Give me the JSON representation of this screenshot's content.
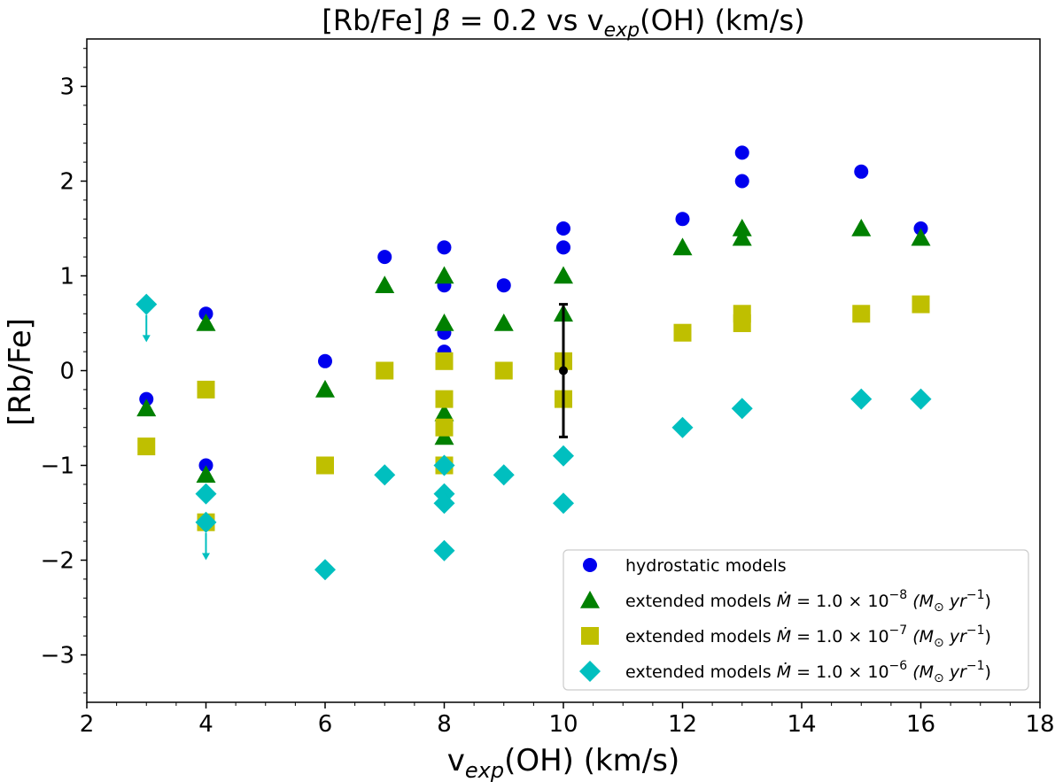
{
  "chart_data": {
    "type": "scatter",
    "title": "[Rb/Fe] β = 0.2 vs v_exp(OH) (km/s)",
    "title_parts": {
      "prefix": "[Rb/Fe] ",
      "beta": "β",
      "middle": " = 0.2 vs v",
      "sub": "exp",
      "suffix": "(OH) (km/s)"
    },
    "xlabel": "v_exp(OH) (km/s)",
    "xlabel_parts": {
      "prefix": "v",
      "sub": "exp",
      "suffix": "(OH) (km/s)"
    },
    "ylabel": "[Rb/Fe]",
    "xlim": [
      2,
      18
    ],
    "ylim": [
      -3.5,
      3.5
    ],
    "xticks": [
      2,
      4,
      6,
      8,
      10,
      12,
      14,
      16,
      18
    ],
    "yticks": [
      -3,
      -2,
      -1,
      0,
      1,
      2,
      3
    ],
    "legend_position": "lower-right",
    "series": [
      {
        "name": "hydrostatic models",
        "marker": "circle",
        "color": "#0000ee",
        "points": [
          [
            3,
            -0.3
          ],
          [
            4,
            0.6
          ],
          [
            4,
            -1.0
          ],
          [
            6,
            0.1
          ],
          [
            7,
            1.2
          ],
          [
            8,
            1.3
          ],
          [
            8,
            0.9
          ],
          [
            8,
            0.4
          ],
          [
            8,
            0.2
          ],
          [
            9,
            0.9
          ],
          [
            10,
            1.5
          ],
          [
            10,
            1.3
          ],
          [
            12,
            1.6
          ],
          [
            13,
            2.3
          ],
          [
            13,
            2.0
          ],
          [
            15,
            2.1
          ],
          [
            16,
            1.5
          ]
        ]
      },
      {
        "name": "extended models Ṁ = 1.0 × 10⁻⁸ (M☉ yr⁻¹)",
        "marker": "triangle",
        "color": "#008000",
        "points": [
          [
            3,
            -0.4
          ],
          [
            4,
            0.5
          ],
          [
            4,
            -1.1
          ],
          [
            6,
            -0.2
          ],
          [
            7,
            0.9
          ],
          [
            8,
            1.0
          ],
          [
            8,
            0.5
          ],
          [
            8,
            -0.45
          ],
          [
            8,
            -0.7
          ],
          [
            9,
            0.5
          ],
          [
            10,
            1.0
          ],
          [
            10,
            0.6
          ],
          [
            12,
            1.3
          ],
          [
            13,
            1.5
          ],
          [
            13,
            1.4
          ],
          [
            15,
            1.5
          ],
          [
            16,
            1.4
          ]
        ]
      },
      {
        "name": "extended models Ṁ = 1.0 × 10⁻⁷ (M☉ yr⁻¹)",
        "marker": "square",
        "color": "#bfbf00",
        "points": [
          [
            3,
            -0.8
          ],
          [
            4,
            -0.2
          ],
          [
            4,
            -1.6
          ],
          [
            6,
            -1.0
          ],
          [
            7,
            0.0
          ],
          [
            8,
            0.1
          ],
          [
            8,
            -0.3
          ],
          [
            8,
            -0.6
          ],
          [
            8,
            -1.0
          ],
          [
            9,
            0.0
          ],
          [
            10,
            0.1
          ],
          [
            10,
            -0.3
          ],
          [
            12,
            0.4
          ],
          [
            13,
            0.6
          ],
          [
            13,
            0.5
          ],
          [
            15,
            0.6
          ],
          [
            16,
            0.7
          ]
        ]
      },
      {
        "name": "extended models Ṁ = 1.0 × 10⁻⁶ (M☉ yr⁻¹)",
        "marker": "diamond",
        "color": "#00bfbf",
        "points": [
          [
            3,
            0.7
          ],
          [
            4,
            -1.3
          ],
          [
            4,
            -1.6
          ],
          [
            6,
            -2.1
          ],
          [
            7,
            -1.1
          ],
          [
            8,
            -1.0
          ],
          [
            8,
            -1.3
          ],
          [
            8,
            -1.4
          ],
          [
            8,
            -1.9
          ],
          [
            9,
            -1.1
          ],
          [
            10,
            -0.9
          ],
          [
            10,
            -1.4
          ],
          [
            12,
            -0.6
          ],
          [
            13,
            -0.4
          ],
          [
            15,
            -0.3
          ],
          [
            16,
            -0.3
          ]
        ]
      }
    ],
    "upper_limit_arrows": [
      {
        "x": 3,
        "y_from": 0.7,
        "y_to": 0.3,
        "color": "#00bfbf"
      },
      {
        "x": 4,
        "y_from": -1.6,
        "y_to": -2.0,
        "color": "#00bfbf"
      }
    ],
    "error_bar": {
      "x": 10,
      "y": 0.0,
      "err": 0.7,
      "color": "#000000"
    },
    "legend_entries": [
      {
        "text": "hydrostatic models"
      },
      {
        "text": "extended models ",
        "mdot": "Ṁ",
        "eq": " = 1.0 × 10",
        "exp": "−8",
        "unit_a": " (M",
        "unit_sun": "⊙",
        "unit_b": " yr",
        "unit_exp": "−1",
        "unit_c": ")"
      },
      {
        "text": "extended models ",
        "mdot": "Ṁ",
        "eq": " = 1.0 × 10",
        "exp": "−7",
        "unit_a": " (M",
        "unit_sun": "⊙",
        "unit_b": " yr",
        "unit_exp": "−1",
        "unit_c": ")"
      },
      {
        "text": "extended models ",
        "mdot": "Ṁ",
        "eq": " = 1.0 × 10",
        "exp": "−6",
        "unit_a": " (M",
        "unit_sun": "⊙",
        "unit_b": " yr",
        "unit_exp": "−1",
        "unit_c": ")"
      }
    ]
  }
}
